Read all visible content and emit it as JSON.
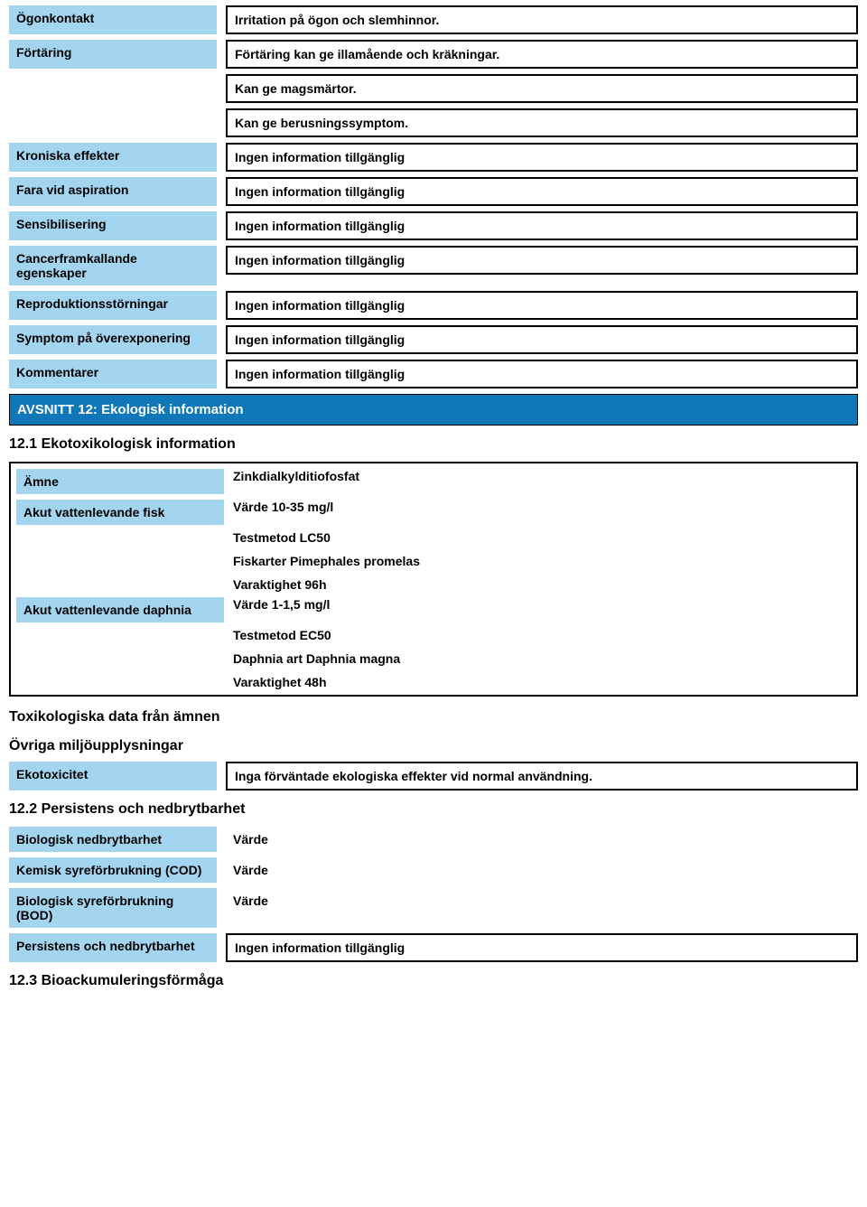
{
  "colors": {
    "label_bg": "#a3d5f0",
    "section_bg": "#1078b8",
    "section_text": "#ffffff",
    "border": "#000000",
    "page_bg": "#ffffff",
    "text": "#000000"
  },
  "font_sizes": {
    "body": 14,
    "sub_header": 16,
    "section_header": 15
  },
  "top_rows": [
    {
      "label": "Ögonkontakt",
      "values": [
        "Irritation på ögon och slemhinnor."
      ]
    },
    {
      "label": "Förtäring",
      "values": [
        "Förtäring kan ge illamående och kräkningar.",
        "Kan ge magsmärtor.",
        "Kan ge berusningssymptom."
      ]
    },
    {
      "label": "Kroniska effekter",
      "values": [
        "Ingen information tillgänglig"
      ]
    },
    {
      "label": "Fara vid aspiration",
      "values": [
        "Ingen information tillgänglig"
      ]
    },
    {
      "label": "Sensibilisering",
      "values": [
        "Ingen information tillgänglig"
      ]
    },
    {
      "label": "Cancerframkallande egenskaper",
      "values": [
        "Ingen information tillgänglig"
      ]
    },
    {
      "label": "Reproduktionsstörningar",
      "values": [
        "Ingen information tillgänglig"
      ]
    },
    {
      "label": "Symptom på överexponering",
      "values": [
        "Ingen information tillgänglig"
      ]
    },
    {
      "label": "Kommentarer",
      "values": [
        "Ingen information tillgänglig"
      ]
    }
  ],
  "section12_title": "AVSNITT 12: Ekologisk information",
  "section12_1_title": "12.1 Ekotoxikologisk information",
  "eco_box": {
    "amne_label": "Ämne",
    "amne_value": "Zinkdialkylditiofosfat",
    "fish_label": "Akut vattenlevande fisk",
    "fish_lines": [
      "Värde   10-35 mg/l",
      "Testmetod    LC50",
      "Fiskarter    Pimephales promelas",
      "Varaktighet     96h"
    ],
    "daphnia_label": "Akut vattenlevande daphnia",
    "daphnia_lines": [
      "Värde   1-1,5 mg/l",
      "Testmetod    EC50",
      "Daphnia art     Daphnia magna",
      "Varaktighet     48h"
    ]
  },
  "tox_heading": "Toxikologiska data från ämnen",
  "env_heading": "Övriga miljöupplysningar",
  "ekotox_label": "Ekotoxicitet",
  "ekotox_value": "Inga förväntade ekologiska effekter vid normal användning.",
  "section12_2_title": "12.2 Persistens och nedbrytbarhet",
  "persist_rows": [
    {
      "label": "Biologisk nedbrytbarhet",
      "value": "Värde",
      "boxed": false
    },
    {
      "label": "Kemisk syreförbrukning (COD)",
      "value": "Värde",
      "boxed": false
    },
    {
      "label": "Biologisk syreförbrukning (BOD)",
      "value": "Värde",
      "boxed": false
    },
    {
      "label": "Persistens och nedbrytbarhet",
      "value": "Ingen information tillgänglig",
      "boxed": true
    }
  ],
  "section12_3_title": "12.3 Bioackumuleringsförmåga"
}
